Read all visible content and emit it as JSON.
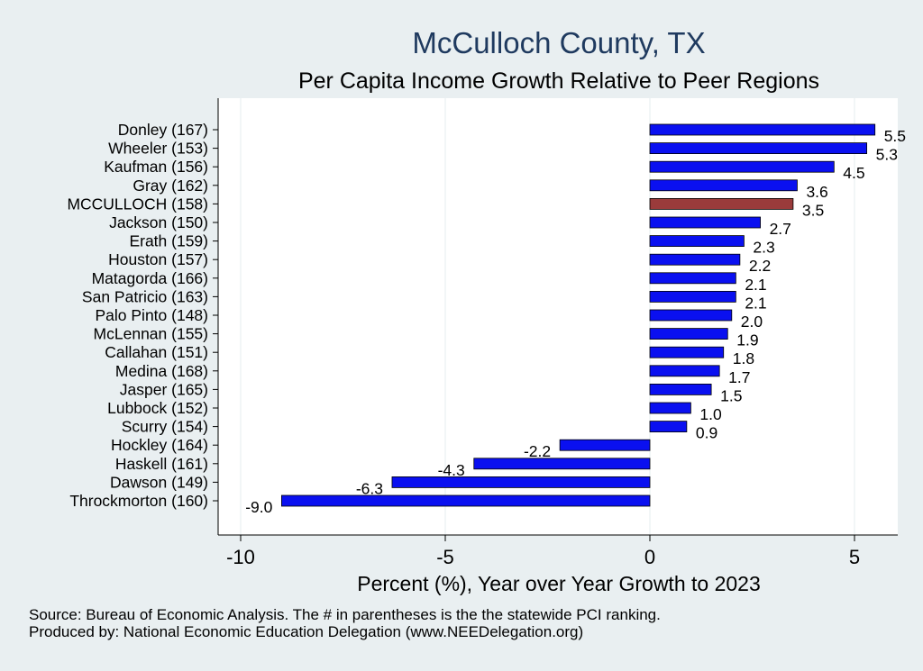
{
  "chart_data": {
    "type": "bar",
    "orientation": "horizontal",
    "title": "McCulloch County, TX",
    "subtitle": "Per Capita Income Growth Relative to Peer Regions",
    "xlabel": "Percent (%), Year over Year Growth to 2023",
    "ylabel": "",
    "xlim": [
      -10.5,
      6.0
    ],
    "xticks": [
      -10,
      -5,
      0,
      5
    ],
    "xtick_labels": [
      "-10",
      "-5",
      "0",
      "5"
    ],
    "grid": true,
    "categories": [
      "Donley (167)",
      "Wheeler (153)",
      "Kaufman (156)",
      "Gray (162)",
      "MCCULLOCH (158)",
      "Jackson (150)",
      "Erath (159)",
      "Houston (157)",
      "Matagorda (166)",
      "San Patricio (163)",
      "Palo Pinto (148)",
      "McLennan (155)",
      "Callahan (151)",
      "Medina (168)",
      "Jasper (165)",
      "Lubbock (152)",
      "Scurry (154)",
      "Hockley (164)",
      "Haskell (161)",
      "Dawson (149)",
      "Throckmorton (160)"
    ],
    "values": [
      5.5,
      5.3,
      4.5,
      3.6,
      3.5,
      2.7,
      2.3,
      2.2,
      2.1,
      2.1,
      2.0,
      1.9,
      1.8,
      1.7,
      1.5,
      1.0,
      0.9,
      -2.2,
      -4.3,
      -6.3,
      -9.0
    ],
    "value_labels": [
      "5.5",
      "5.3",
      "4.5",
      "3.6",
      "3.5",
      "2.7",
      "2.3",
      "2.2",
      "2.1",
      "2.1",
      "2.0",
      "1.9",
      "1.8",
      "1.7",
      "1.5",
      "1.0",
      "0.9",
      "-2.2",
      "-4.3",
      "-6.3",
      "-9.0"
    ],
    "highlight_category": "MCCULLOCH (158)",
    "colors": {
      "bar": "#0a10f0",
      "highlight": "#9a3b3b",
      "bar_outline": "#000000",
      "plot_background": "#ffffff",
      "page_background": "#e9eff1",
      "grid": "#e4ecef",
      "title": "#1f3a5f"
    }
  },
  "footer": {
    "source": "Source: Bureau of Economic Analysis. The # in parentheses is the the statewide PCI ranking.",
    "producer": "Produced by: National Economic Education Delegation (www.NEEDelegation.org)"
  }
}
